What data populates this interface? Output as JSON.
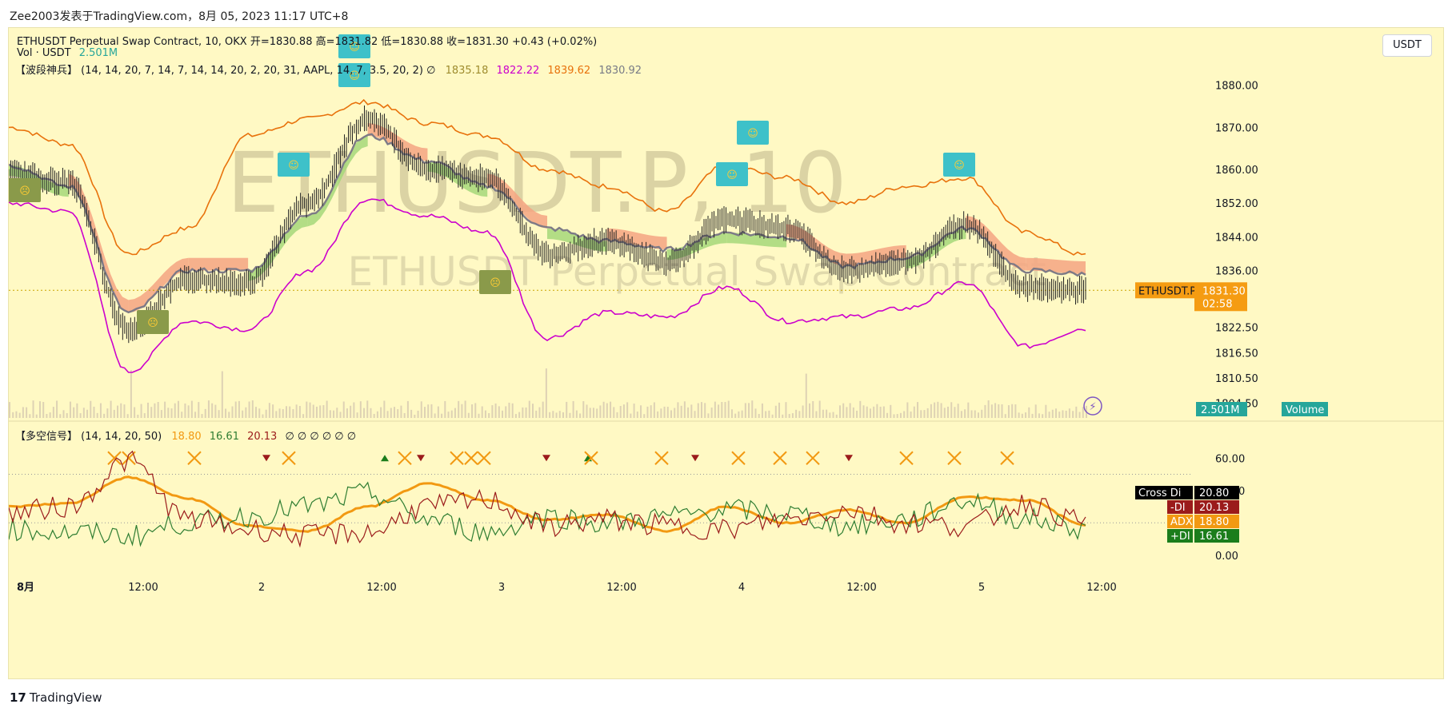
{
  "header": {
    "credit": "Zee2003发表于TradingView.com，8月 05, 2023 11:17 UTC+8"
  },
  "footer": {
    "logo_text": "TradingView",
    "logo_mark": "17"
  },
  "currency_button": "USDT",
  "watermark": {
    "big": "ETHUSDT.P, 10",
    "small": "ETHUSDT Perpetual Swap Contract"
  },
  "legend": {
    "line1": "ETHUSDT Perpetual Swap Contract, 10, OKX  开=1830.88  高=1831.82  低=1830.88  收=1831.30  +0.43 (+0.02%)",
    "vol_label": "Vol · USDT",
    "vol_value": "2.501M",
    "ind_label": "【波段神兵】 (14, 14, 20, 7, 14, 7, 14, 14, 20, 2, 20, 31, AAPL, 14, 7, 3.5, 20, 2)  ∅",
    "ind_v1": "1835.18",
    "ind_v2": "1822.22",
    "ind_v3": "1839.62",
    "ind_v4": "1830.92",
    "osc_label": "【多空信号】 (14, 14, 20, 50)",
    "osc_v1": "18.80",
    "osc_v2": "16.61",
    "osc_v3": "20.13",
    "osc_rest": "∅  ∅  ∅  ∅  ∅  ∅"
  },
  "colors": {
    "background": "#fff9c4",
    "upper_band": "#e8720c",
    "lower_band": "#cc00cc",
    "cloud_bear": "#f4a582",
    "cloud_bull": "#a6d87a",
    "adx": "#f29912",
    "plus_di": "#2e7d32",
    "minus_di": "#9b1b1b",
    "price_badge": "#f59c12",
    "volume_badge": "#26a69a"
  },
  "price_axis": {
    "ticks": [
      "1880.00",
      "1870.00",
      "1860.00",
      "1852.00",
      "1844.00",
      "1836.00",
      "1822.50",
      "1816.50",
      "1810.50",
      "1804.50"
    ]
  },
  "osc_axis": {
    "ticks": [
      "60.00",
      "40.00",
      "0.00"
    ]
  },
  "time_axis": {
    "ticks": [
      "8月",
      "12:00",
      "2",
      "12:00",
      "3",
      "12:00",
      "4",
      "12:00",
      "5",
      "12:00"
    ]
  },
  "badges": {
    "symbol": "ETHUSDT.P",
    "price": "1831.30",
    "countdown": "02:58",
    "volume_label": "Volume",
    "volume_value": "2.501M",
    "cross_label": "Cross Di",
    "cross_value": "20.80",
    "minus_label": "-DI",
    "minus_value": "20.13",
    "adx_label": "ADX",
    "adx_value": "18.80",
    "plus_label": "+DI",
    "plus_value": "16.61"
  },
  "icons": {
    "bull_face": "smiling-face-icon",
    "bear_face": "sick-face-icon",
    "alert": "lightning-icon"
  },
  "chart_data": [
    {
      "type": "line",
      "title": "ETHUSDT Perpetual Swap Contract, 10, OKX",
      "xlabel": "",
      "ylabel": "",
      "ylim": [
        1801,
        1886
      ],
      "x": [
        "8月 1 00:00",
        "8月 1 06:00",
        "8月 1 12:00",
        "8月 1 18:00",
        "8月 2 00:00",
        "8月 2 06:00",
        "8月 2 12:00",
        "8月 2 18:00",
        "8月 3 00:00",
        "8月 3 06:00",
        "8月 3 12:00",
        "8月 3 18:00",
        "8月 4 00:00",
        "8月 4 06:00",
        "8月 4 12:00",
        "8月 4 18:00",
        "8月 5 00:00",
        "8月 5 06:00",
        "8月 5 11:17"
      ],
      "series": [
        {
          "values": [
            1859,
            1857,
            1822,
            1834,
            1833,
            1852,
            1872,
            1860,
            1858,
            1840,
            1843,
            1838,
            1848,
            1846,
            1836,
            1838,
            1847,
            1832,
            1831.3
          ]
        },
        {
          "values": [
            1870,
            1866,
            1840,
            1846,
            1868,
            1872,
            1876,
            1871,
            1868,
            1860,
            1856,
            1850,
            1861,
            1858,
            1852,
            1856,
            1858,
            1845,
            1839.62
          ]
        },
        {
          "values": [
            1852,
            1850,
            1812,
            1824,
            1822,
            1836,
            1853,
            1849,
            1845,
            1820,
            1826,
            1825,
            1832,
            1824,
            1825,
            1827,
            1833,
            1818,
            1822.22
          ]
        },
        {
          "values": [
            1861,
            1856,
            1826,
            1836,
            1836,
            1849,
            1868,
            1862,
            1856,
            1846,
            1843,
            1841,
            1845,
            1844,
            1837,
            1839,
            1846,
            1836,
            1835.18
          ]
        }
      ]
    },
    {
      "type": "line",
      "title": "【多空信号】 (14, 14, 20, 50)",
      "xlabel": "",
      "ylabel": "",
      "ylim": [
        -8,
        70
      ],
      "x": [
        "8月 1 00:00",
        "8月 1 06:00",
        "8月 1 12:00",
        "8月 1 18:00",
        "8月 2 00:00",
        "8月 2 06:00",
        "8月 2 12:00",
        "8月 2 18:00",
        "8月 3 00:00",
        "8月 3 06:00",
        "8月 3 12:00",
        "8月 3 18:00",
        "8月 4 00:00",
        "8月 4 06:00",
        "8月 4 12:00",
        "8月 4 18:00",
        "8月 5 00:00",
        "8月 5 06:00",
        "8月 5 11:17"
      ],
      "series": [
        {
          "name": "ADX",
          "values": [
            30,
            32,
            48,
            35,
            18,
            15,
            30,
            44,
            34,
            22,
            25,
            15,
            30,
            20,
            28,
            20,
            36,
            34,
            18.8
          ]
        },
        {
          "name": "+DI",
          "values": [
            16,
            14,
            12,
            20,
            24,
            30,
            38,
            22,
            14,
            24,
            20,
            24,
            28,
            26,
            18,
            22,
            34,
            22,
            16.61
          ]
        },
        {
          "name": "-DI",
          "values": [
            26,
            30,
            58,
            22,
            16,
            12,
            14,
            30,
            34,
            18,
            22,
            18,
            16,
            22,
            28,
            20,
            18,
            32,
            20.13
          ]
        }
      ]
    }
  ]
}
